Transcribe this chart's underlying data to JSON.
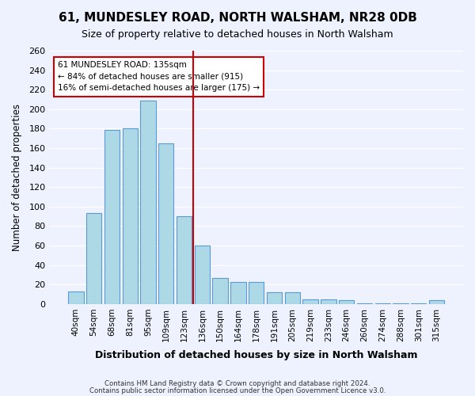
{
  "title": "61, MUNDESLEY ROAD, NORTH WALSHAM, NR28 0DB",
  "subtitle": "Size of property relative to detached houses in North Walsham",
  "xlabel": "Distribution of detached houses by size in North Walsham",
  "ylabel": "Number of detached properties",
  "footer1": "Contains HM Land Registry data © Crown copyright and database right 2024.",
  "footer2": "Contains public sector information licensed under the Open Government Licence v3.0.",
  "bar_labels": [
    "40sqm",
    "54sqm",
    "68sqm",
    "81sqm",
    "95sqm",
    "109sqm",
    "123sqm",
    "136sqm",
    "150sqm",
    "164sqm",
    "178sqm",
    "191sqm",
    "205sqm",
    "219sqm",
    "233sqm",
    "246sqm",
    "260sqm",
    "274sqm",
    "288sqm",
    "301sqm",
    "315sqm"
  ],
  "bar_values": [
    13,
    93,
    179,
    180,
    209,
    165,
    90,
    60,
    27,
    23,
    23,
    12,
    12,
    5,
    5,
    4,
    1,
    1,
    1,
    1,
    4
  ],
  "bar_color": "#add8e6",
  "bar_edge_color": "#5b9bd5",
  "vline_x": 6.5,
  "vline_color": "#cc0000",
  "annotation_title": "61 MUNDESLEY ROAD: 135sqm",
  "annotation_line1": "← 84% of detached houses are smaller (915)",
  "annotation_line2": "16% of semi-detached houses are larger (175) →",
  "annotation_box_color": "#ffffff",
  "annotation_box_edge": "#cc0000",
  "ylim": [
    0,
    260
  ],
  "yticks": [
    0,
    20,
    40,
    60,
    80,
    100,
    120,
    140,
    160,
    180,
    200,
    220,
    240,
    260
  ],
  "background_color": "#eef2ff",
  "grid_color": "#ffffff"
}
